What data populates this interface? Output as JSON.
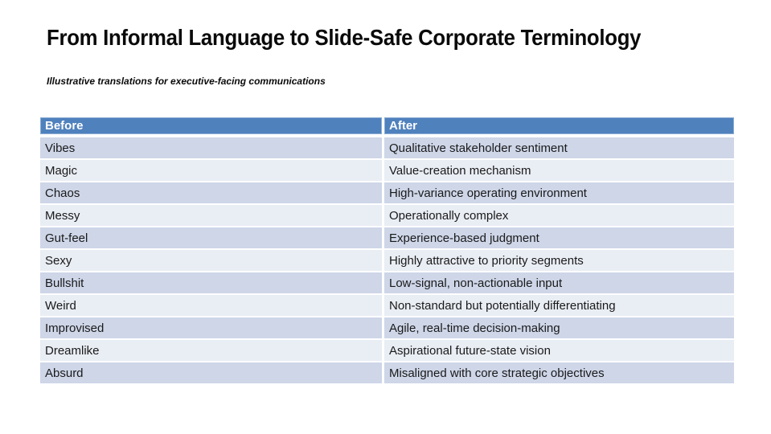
{
  "slide": {
    "title": "From Informal Language to Slide-Safe Corporate Terminology",
    "subtitle": "Illustrative translations for executive-facing communications"
  },
  "table": {
    "columns": [
      "Before",
      "After"
    ],
    "rows": [
      {
        "before": "Vibes",
        "after": "Qualitative stakeholder sentiment"
      },
      {
        "before": "Magic",
        "after": "Value-creation mechanism"
      },
      {
        "before": "Chaos",
        "after": "High-variance operating environment"
      },
      {
        "before": "Messy",
        "after": "Operationally complex"
      },
      {
        "before": "Gut-feel",
        "after": "Experience-based judgment"
      },
      {
        "before": "Sexy",
        "after": "Highly attractive to priority segments"
      },
      {
        "before": "Bullshit",
        "after": "Low-signal, non-actionable input"
      },
      {
        "before": "Weird",
        "after": "Non-standard but potentially differentiating"
      },
      {
        "before": "Improvised",
        "after": "Agile, real-time decision-making"
      },
      {
        "before": "Dreamlike",
        "after": "Aspirational future-state vision"
      },
      {
        "before": "Absurd",
        "after": "Misaligned with core strategic objectives"
      }
    ]
  },
  "colors": {
    "header_bg": "#4F81BD",
    "row_odd": "#CED6E8",
    "row_even": "#E9EDF4",
    "header_text": "#FFFFFF",
    "body_text": "#1A1A1A"
  }
}
